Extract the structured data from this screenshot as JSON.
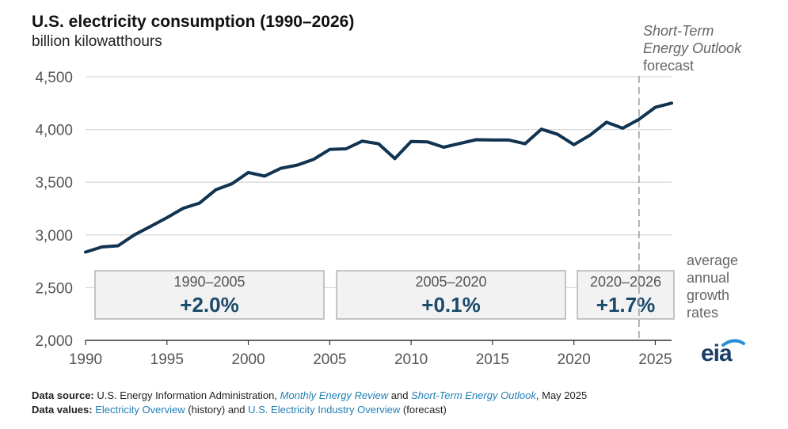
{
  "header": {
    "title": "U.S. electricity consumption (1990–2026)",
    "subtitle": "billion kilowatthours"
  },
  "forecast": {
    "label_line1": "Short-Term",
    "label_line2": "Energy Outlook",
    "label_line3": "forecast"
  },
  "growth_note": {
    "lines": [
      "average",
      "annual",
      "growth",
      "rates"
    ]
  },
  "growth_boxes": [
    {
      "period": "1990–2005",
      "rate": "+2.0%"
    },
    {
      "period": "2005–2020",
      "rate": "+0.1%"
    },
    {
      "period": "2020–2026",
      "rate": "+1.7%"
    }
  ],
  "footer": {
    "source_label": "Data source:",
    "source_text_1": "U.S. Energy Information Administration,",
    "source_link_1": "Monthly Energy Review",
    "source_text_2": "and",
    "source_link_2": "Short-Term Energy Outlook",
    "source_text_3": ", May 2025",
    "values_label": "Data values:",
    "values_link_1": "Electricity Overview",
    "values_text_1": "(history) and",
    "values_link_2": "U.S. Electricity Industry Overview",
    "values_text_2": "(forecast)"
  },
  "logo": {
    "text": "eia"
  },
  "colors": {
    "line": "#0f3350",
    "rate_text": "#1b4a6b",
    "box_fill": "#f2f2f2",
    "box_stroke": "#b3b3b3",
    "grid": "#d9d9d9",
    "forecast_line": "#999999"
  },
  "chart_data": {
    "type": "line",
    "title": "U.S. electricity consumption (1990–2026)",
    "ylabel": "billion kilowatthours",
    "xlabel": "",
    "xlim": [
      1990,
      2026
    ],
    "ylim": [
      2000,
      4500
    ],
    "x_ticks": [
      1990,
      1995,
      2000,
      2005,
      2010,
      2015,
      2020,
      2025
    ],
    "y_ticks": [
      2000,
      2500,
      3000,
      3500,
      4000,
      4500
    ],
    "y_tick_labels": [
      "2,000",
      "2,500",
      "3,000",
      "3,500",
      "4,000",
      "4,500"
    ],
    "forecast_start_year": 2024,
    "series": [
      {
        "name": "U.S. electricity consumption",
        "x": [
          1990,
          1991,
          1992,
          1993,
          1994,
          1995,
          1996,
          1997,
          1998,
          1999,
          2000,
          2001,
          2002,
          2003,
          2004,
          2005,
          2006,
          2007,
          2008,
          2009,
          2010,
          2011,
          2012,
          2013,
          2014,
          2015,
          2016,
          2017,
          2018,
          2019,
          2020,
          2021,
          2022,
          2023,
          2024,
          2025,
          2026
        ],
        "values": [
          2837,
          2886,
          2897,
          3001,
          3081,
          3164,
          3253,
          3302,
          3428,
          3486,
          3592,
          3558,
          3632,
          3662,
          3716,
          3811,
          3817,
          3890,
          3865,
          3724,
          3887,
          3883,
          3832,
          3868,
          3903,
          3900,
          3900,
          3865,
          4003,
          3954,
          3856,
          3947,
          4069,
          4012,
          4097,
          4210,
          4250
        ]
      }
    ],
    "annotations": [
      {
        "text": "Short-Term Energy Outlook forecast",
        "x": 2024
      },
      {
        "text": "1990–2005 +2.0%"
      },
      {
        "text": "2005–2020 +0.1%"
      },
      {
        "text": "2020–2026 +1.7%"
      },
      {
        "text": "average annual growth rates"
      }
    ]
  }
}
